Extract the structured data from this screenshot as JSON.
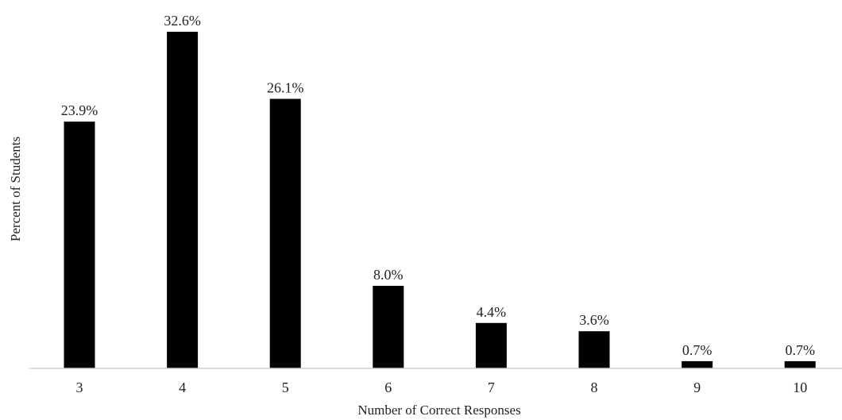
{
  "chart_data": {
    "type": "bar",
    "categories": [
      "3",
      "4",
      "5",
      "6",
      "7",
      "8",
      "9",
      "10"
    ],
    "values": [
      23.9,
      32.6,
      26.1,
      8.0,
      4.4,
      3.6,
      0.7,
      0.7
    ],
    "data_labels": [
      "23.9%",
      "32.6%",
      "26.1%",
      "8.0%",
      "4.4%",
      "3.6%",
      "0.7%",
      "0.7%"
    ],
    "xlabel": "Number of Correct Responses",
    "ylabel": "Percent of Students",
    "ylim": [
      0,
      32.6
    ],
    "grid": false,
    "legend": "none",
    "bar_color": "#000000"
  }
}
